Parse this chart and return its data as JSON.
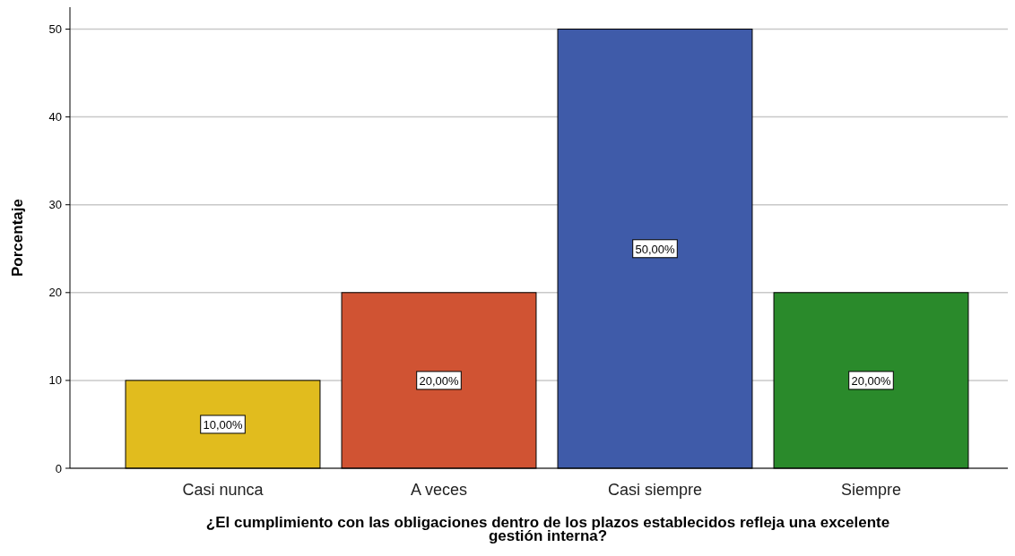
{
  "chart_data": {
    "type": "bar",
    "xlabel": "¿El cumplimiento con las obligaciones dentro de los plazos establecidos refleja una excelente gestión interna?",
    "ylabel": "Porcentaje",
    "categories": [
      "Casi nunca",
      "A veces",
      "Casi siempre",
      "Siempre"
    ],
    "values": [
      10,
      20,
      50,
      20
    ],
    "colors": [
      "#e1bc1e",
      "#d05333",
      "#3f5ba9",
      "#2a8a2b"
    ],
    "value_labels": [
      "10,00%",
      "20,00%",
      "50,00%",
      "20,00%"
    ],
    "ylim": [
      0,
      52.5
    ],
    "yticks": [
      0,
      10,
      20,
      30,
      40,
      50
    ],
    "grid": "y"
  }
}
